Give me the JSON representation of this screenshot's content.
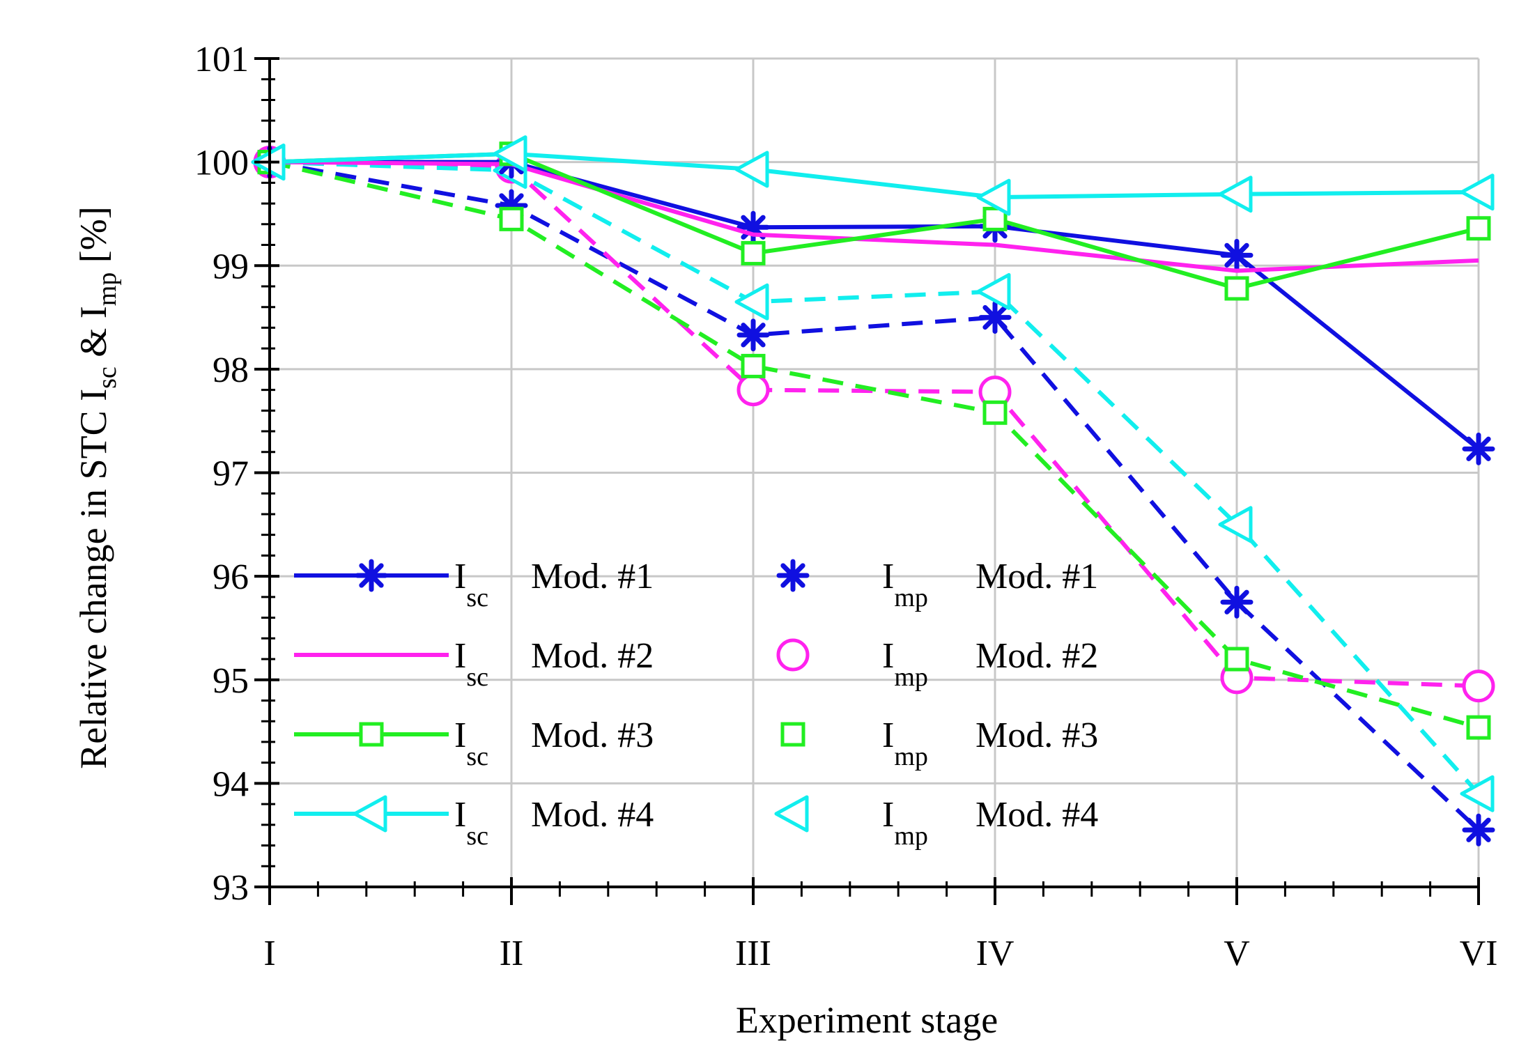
{
  "chart_data": {
    "type": "line",
    "title": "",
    "xlabel": "Experiment stage",
    "ylabel": {
      "main": "Relative change in STC I",
      "sub1": "sc",
      "mid": " & I",
      "sub2": "mp",
      "end": " [%]"
    },
    "categories": [
      "I",
      "II",
      "III",
      "IV",
      "V",
      "VI"
    ],
    "ylim": [
      93,
      101
    ],
    "yticks": [
      "93",
      "94",
      "95",
      "96",
      "97",
      "98",
      "99",
      "100",
      "101"
    ],
    "grid": true,
    "legend_position": "lower-left",
    "series": [
      {
        "name": "Isc Mod. #1",
        "q": "I",
        "sub": "sc",
        "label": "Mod. #1",
        "color": "#1010e0",
        "dash": false,
        "marker": "asterisk",
        "show_line": true,
        "values": [
          100.0,
          100.0,
          99.37,
          99.38,
          99.1,
          97.23
        ]
      },
      {
        "name": "Isc Mod. #2",
        "q": "I",
        "sub": "sc",
        "label": "Mod. #2",
        "color": "#ff22ee",
        "dash": false,
        "marker": "none",
        "show_line": true,
        "values": [
          100.0,
          99.98,
          99.3,
          99.2,
          98.95,
          99.05
        ]
      },
      {
        "name": "Isc Mod. #3",
        "q": "I",
        "sub": "sc",
        "label": "Mod. #3",
        "color": "#22ee22",
        "dash": false,
        "marker": "square",
        "show_line": true,
        "values": [
          100.0,
          100.08,
          99.12,
          99.45,
          98.78,
          99.36
        ]
      },
      {
        "name": "Isc Mod. #4",
        "q": "I",
        "sub": "sc",
        "label": "Mod. #4",
        "color": "#11eeee",
        "dash": false,
        "marker": "triangle-left",
        "show_line": true,
        "values": [
          100.0,
          100.08,
          99.93,
          99.66,
          99.69,
          99.71
        ]
      },
      {
        "name": "Imp Mod. #1",
        "q": "I",
        "sub": "mp",
        "label": "Mod. #1",
        "color": "#1010e0",
        "dash": true,
        "marker": "asterisk",
        "show_line": false,
        "values": [
          100.0,
          99.58,
          98.33,
          98.5,
          95.75,
          93.55
        ]
      },
      {
        "name": "Imp Mod. #2",
        "q": "I",
        "sub": "mp",
        "label": "Mod. #2",
        "color": "#ff22ee",
        "dash": true,
        "marker": "circle",
        "show_line": false,
        "values": [
          100.0,
          99.95,
          97.8,
          97.78,
          95.02,
          94.94
        ]
      },
      {
        "name": "Imp Mod. #3",
        "q": "I",
        "sub": "mp",
        "label": "Mod. #3",
        "color": "#22ee22",
        "dash": true,
        "marker": "square",
        "show_line": false,
        "values": [
          100.0,
          99.45,
          98.03,
          97.58,
          95.2,
          94.54
        ]
      },
      {
        "name": "Imp Mod. #4",
        "q": "I",
        "sub": "mp",
        "label": "Mod. #4",
        "color": "#11eeee",
        "dash": true,
        "marker": "triangle-left",
        "show_line": false,
        "values": [
          100.0,
          99.92,
          98.65,
          98.75,
          96.5,
          93.9
        ]
      }
    ]
  }
}
